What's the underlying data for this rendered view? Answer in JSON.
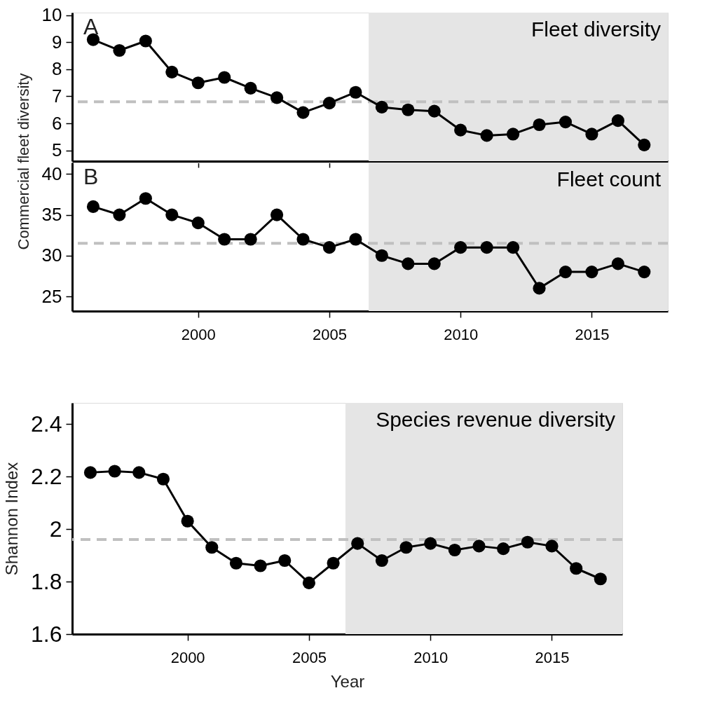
{
  "chart_data": [
    {
      "type": "line",
      "title": "Fleet diversity",
      "ylabel": "Commercial fleet diversity",
      "annotations": [
        "A"
      ],
      "marker": "circle",
      "line_style": "solid",
      "tick_labels": "y",
      "x": [
        1996,
        1997,
        1998,
        1999,
        2000,
        2001,
        2002,
        2003,
        2004,
        2005,
        2006,
        2007,
        2008,
        2009,
        2010,
        2011,
        2012,
        2013,
        2014,
        2015,
        2016,
        2017
      ],
      "series": [
        {
          "color": "#000000",
          "values": [
            9.1,
            8.7,
            9.05,
            7.9,
            7.5,
            7.7,
            7.3,
            6.95,
            6.4,
            6.75,
            7.15,
            6.6,
            6.5,
            6.45,
            5.75,
            5.55,
            5.6,
            5.95,
            6.05,
            5.6,
            6.1,
            5.2
          ]
        }
      ],
      "xlim": [
        1995.2,
        2017.9
      ],
      "ylim": [
        4.6,
        10.1
      ],
      "xticks": [
        2000,
        2005,
        2010,
        2015
      ],
      "yticks": [
        5,
        6,
        7,
        8,
        9,
        10
      ],
      "ref_lines": [
        {
          "axis": "y",
          "value": 6.8,
          "color": "#c0c0c0",
          "line_style": "dashed"
        }
      ],
      "bands": [
        {
          "axis": "x",
          "from": 2006.5,
          "to": 2017.9,
          "color": "#e5e5e5"
        }
      ]
    },
    {
      "type": "line",
      "title": "Fleet count",
      "annotations": [
        "B"
      ],
      "marker": "circle",
      "line_style": "solid",
      "x": [
        1996,
        1997,
        1998,
        1999,
        2000,
        2001,
        2002,
        2003,
        2004,
        2005,
        2006,
        2007,
        2008,
        2009,
        2010,
        2011,
        2012,
        2013,
        2014,
        2015,
        2016,
        2017
      ],
      "series": [
        {
          "color": "#000000",
          "values": [
            36,
            35,
            37,
            35,
            34,
            32,
            32,
            35,
            32,
            31,
            32,
            30,
            29,
            29,
            31,
            31,
            31,
            26,
            28,
            28,
            29,
            28
          ]
        }
      ],
      "xlim": [
        1995.2,
        2017.9
      ],
      "ylim": [
        23.2,
        41.4
      ],
      "xticks": [
        2000,
        2005,
        2010,
        2015
      ],
      "yticks": [
        25,
        30,
        35,
        40
      ],
      "ref_lines": [
        {
          "axis": "y",
          "value": 31.5,
          "color": "#c0c0c0",
          "line_style": "dashed"
        }
      ],
      "bands": [
        {
          "axis": "x",
          "from": 2006.5,
          "to": 2017.9,
          "color": "#e5e5e5"
        }
      ]
    },
    {
      "type": "line",
      "title": "Species revenue diversity",
      "ylabel": "Shannon Index",
      "xlabel": "Year",
      "marker": "circle",
      "line_style": "solid",
      "x": [
        1996,
        1997,
        1998,
        1999,
        2000,
        2001,
        2002,
        2003,
        2004,
        2005,
        2006,
        2007,
        2008,
        2009,
        2010,
        2011,
        2012,
        2013,
        2014,
        2015,
        2016,
        2017
      ],
      "series": [
        {
          "color": "#000000",
          "values": [
            2.215,
            2.22,
            2.215,
            2.19,
            2.03,
            1.93,
            1.87,
            1.86,
            1.88,
            1.795,
            1.87,
            1.945,
            1.88,
            1.93,
            1.945,
            1.92,
            1.935,
            1.925,
            1.95,
            1.935,
            1.85,
            1.81
          ]
        }
      ],
      "xlim": [
        1995.25,
        2017.9
      ],
      "ylim": [
        1.6,
        2.48
      ],
      "xticks": [
        2000,
        2005,
        2010,
        2015
      ],
      "yticks": [
        1.6,
        1.8,
        2,
        2.2,
        2.4
      ],
      "ref_lines": [
        {
          "axis": "y",
          "value": 1.96,
          "color": "#c0c0c0",
          "line_style": "dashed"
        }
      ],
      "bands": [
        {
          "axis": "x",
          "from": 2006.5,
          "to": 2017.9,
          "color": "#e5e5e5"
        }
      ]
    }
  ]
}
